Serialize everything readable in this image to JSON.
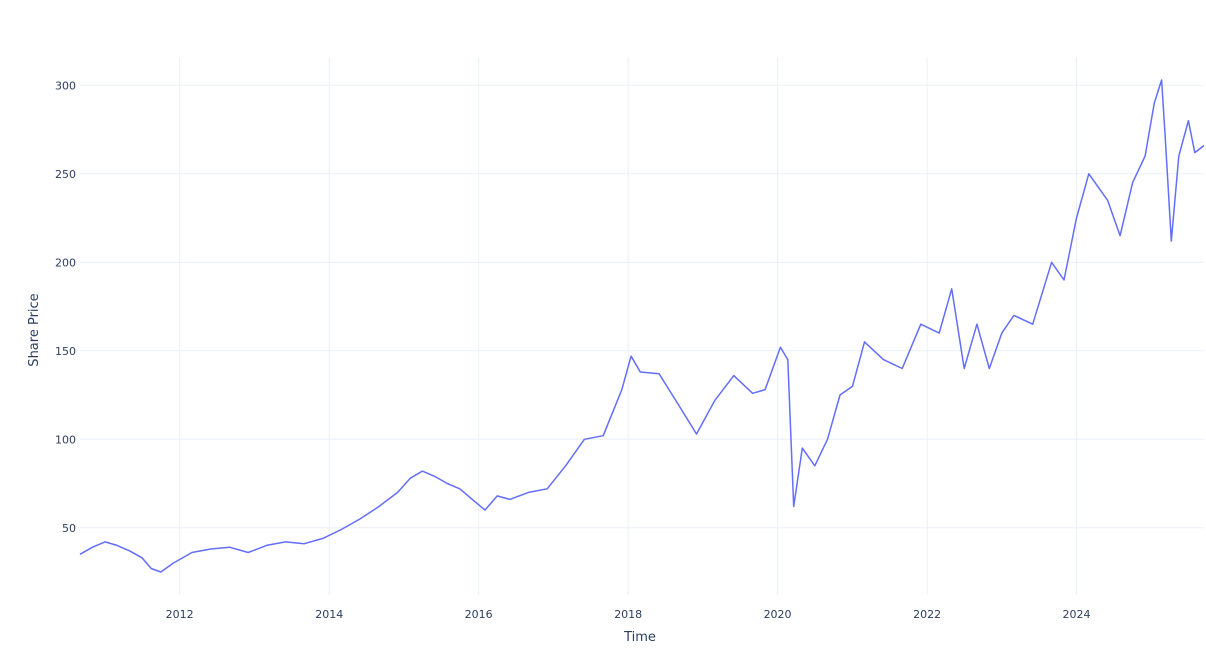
{
  "chart_data": {
    "type": "line",
    "title": "",
    "xlabel": "Time",
    "ylabel": "Share Price",
    "x_range": [
      "2010-09-01",
      "2025-09-15"
    ],
    "ylim": [
      12,
      316
    ],
    "grid": true,
    "legend": "none",
    "x_ticks": [
      {
        "date": "2012-01-01",
        "label": "2012"
      },
      {
        "date": "2014-01-01",
        "label": "2014"
      },
      {
        "date": "2016-01-01",
        "label": "2016"
      },
      {
        "date": "2018-01-01",
        "label": "2018"
      },
      {
        "date": "2020-01-01",
        "label": "2020"
      },
      {
        "date": "2022-01-01",
        "label": "2022"
      },
      {
        "date": "2024-01-01",
        "label": "2024"
      }
    ],
    "y_ticks": [
      {
        "value": 50,
        "label": "50"
      },
      {
        "value": 100,
        "label": "100"
      },
      {
        "value": 150,
        "label": "150"
      },
      {
        "value": 200,
        "label": "200"
      },
      {
        "value": 250,
        "label": "250"
      },
      {
        "value": 300,
        "label": "300"
      }
    ],
    "series": [
      {
        "color": "#636efa",
        "points": [
          [
            "2010-09-01",
            35
          ],
          [
            "2010-11-01",
            39
          ],
          [
            "2011-01-01",
            42
          ],
          [
            "2011-03-01",
            40
          ],
          [
            "2011-05-01",
            37
          ],
          [
            "2011-07-01",
            33
          ],
          [
            "2011-08-15",
            27
          ],
          [
            "2011-10-01",
            25
          ],
          [
            "2011-12-01",
            30
          ],
          [
            "2012-03-01",
            36
          ],
          [
            "2012-06-01",
            38
          ],
          [
            "2012-09-01",
            39
          ],
          [
            "2012-12-01",
            36
          ],
          [
            "2013-03-01",
            40
          ],
          [
            "2013-06-01",
            42
          ],
          [
            "2013-09-01",
            41
          ],
          [
            "2013-12-01",
            44
          ],
          [
            "2014-03-01",
            49
          ],
          [
            "2014-06-01",
            55
          ],
          [
            "2014-09-01",
            62
          ],
          [
            "2014-12-01",
            70
          ],
          [
            "2015-02-01",
            78
          ],
          [
            "2015-04-01",
            82
          ],
          [
            "2015-06-01",
            79
          ],
          [
            "2015-08-01",
            75
          ],
          [
            "2015-10-01",
            72
          ],
          [
            "2015-12-01",
            66
          ],
          [
            "2016-02-01",
            60
          ],
          [
            "2016-04-01",
            68
          ],
          [
            "2016-06-01",
            66
          ],
          [
            "2016-09-01",
            70
          ],
          [
            "2016-12-01",
            72
          ],
          [
            "2017-03-01",
            85
          ],
          [
            "2017-06-01",
            100
          ],
          [
            "2017-09-01",
            102
          ],
          [
            "2017-12-01",
            128
          ],
          [
            "2018-01-15",
            147
          ],
          [
            "2018-03-01",
            138
          ],
          [
            "2018-06-01",
            137
          ],
          [
            "2018-09-01",
            120
          ],
          [
            "2018-12-01",
            103
          ],
          [
            "2019-03-01",
            122
          ],
          [
            "2019-06-01",
            136
          ],
          [
            "2019-09-01",
            126
          ],
          [
            "2019-11-01",
            128
          ],
          [
            "2020-01-15",
            152
          ],
          [
            "2020-02-20",
            145
          ],
          [
            "2020-03-20",
            62
          ],
          [
            "2020-05-01",
            95
          ],
          [
            "2020-07-01",
            85
          ],
          [
            "2020-09-01",
            100
          ],
          [
            "2020-11-01",
            125
          ],
          [
            "2021-01-01",
            130
          ],
          [
            "2021-03-01",
            155
          ],
          [
            "2021-06-01",
            145
          ],
          [
            "2021-09-01",
            140
          ],
          [
            "2021-12-01",
            165
          ],
          [
            "2022-03-01",
            160
          ],
          [
            "2022-05-01",
            185
          ],
          [
            "2022-07-01",
            140
          ],
          [
            "2022-09-01",
            165
          ],
          [
            "2022-11-01",
            140
          ],
          [
            "2023-01-01",
            160
          ],
          [
            "2023-03-01",
            170
          ],
          [
            "2023-06-01",
            165
          ],
          [
            "2023-09-01",
            200
          ],
          [
            "2023-11-01",
            190
          ],
          [
            "2024-01-01",
            225
          ],
          [
            "2024-03-01",
            250
          ],
          [
            "2024-06-01",
            235
          ],
          [
            "2024-08-01",
            215
          ],
          [
            "2024-10-01",
            245
          ],
          [
            "2024-12-01",
            260
          ],
          [
            "2025-01-15",
            290
          ],
          [
            "2025-02-20",
            303
          ],
          [
            "2025-03-10",
            270
          ],
          [
            "2025-04-08",
            212
          ],
          [
            "2025-05-15",
            260
          ],
          [
            "2025-07-01",
            280
          ],
          [
            "2025-08-01",
            262
          ],
          [
            "2025-09-15",
            266
          ]
        ]
      }
    ]
  }
}
